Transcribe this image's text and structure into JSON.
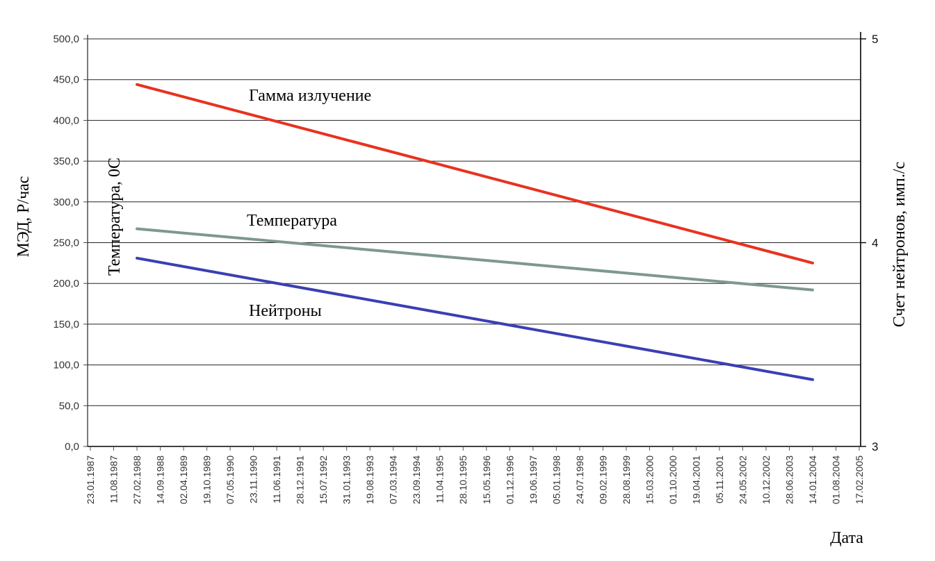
{
  "chart_data": {
    "type": "line",
    "xlabel": "Дата",
    "ylabel_left": "МЭД, Р/час",
    "ylabel_left_inner": "Температура, 0С",
    "ylabel_right": "Счет нейтронов, имп./с",
    "y_left_lim": [
      0,
      500
    ],
    "y_left_ticks": [
      "0,0",
      "50,0",
      "100,0",
      "150,0",
      "200,0",
      "250,0",
      "300,0",
      "350,0",
      "400,0",
      "450,0",
      "500,0"
    ],
    "y_right_lim": [
      3,
      5
    ],
    "y_right_ticks": [
      "3",
      "4",
      "5"
    ],
    "x_ticks": [
      "23.01.1987",
      "11.08.1987",
      "27.02.1988",
      "14.09.1988",
      "02.04.1989",
      "19.10.1989",
      "07.05.1990",
      "23.11.1990",
      "11.06.1991",
      "28.12.1991",
      "15.07.1992",
      "31.01.1993",
      "19.08.1993",
      "07.03.1994",
      "23.09.1994",
      "11.04.1995",
      "28.10.1995",
      "15.05.1996",
      "01.12.1996",
      "19.06.1997",
      "05.01.1998",
      "24.07.1998",
      "09.02.1999",
      "28.08.1999",
      "15.03.2000",
      "01.10.2000",
      "19.04.2001",
      "05.11.2001",
      "24.05.2002",
      "10.12.2002",
      "28.06.2003",
      "14.01.2004",
      "01.08.2004",
      "17.02.2005"
    ],
    "grid": true,
    "series": [
      {
        "name": "Гамма излучение",
        "color": "#e8321e",
        "x": [
          "27.02.1988",
          "14.01.2004"
        ],
        "y": [
          444,
          225
        ]
      },
      {
        "name": "Температура",
        "color": "#7e9890",
        "x": [
          "27.02.1988",
          "14.01.2004"
        ],
        "y": [
          267,
          192
        ]
      },
      {
        "name": "Нейтроны",
        "color": "#3a3fb4",
        "x": [
          "27.02.1988",
          "14.01.2004"
        ],
        "y": [
          231,
          82
        ]
      }
    ]
  }
}
